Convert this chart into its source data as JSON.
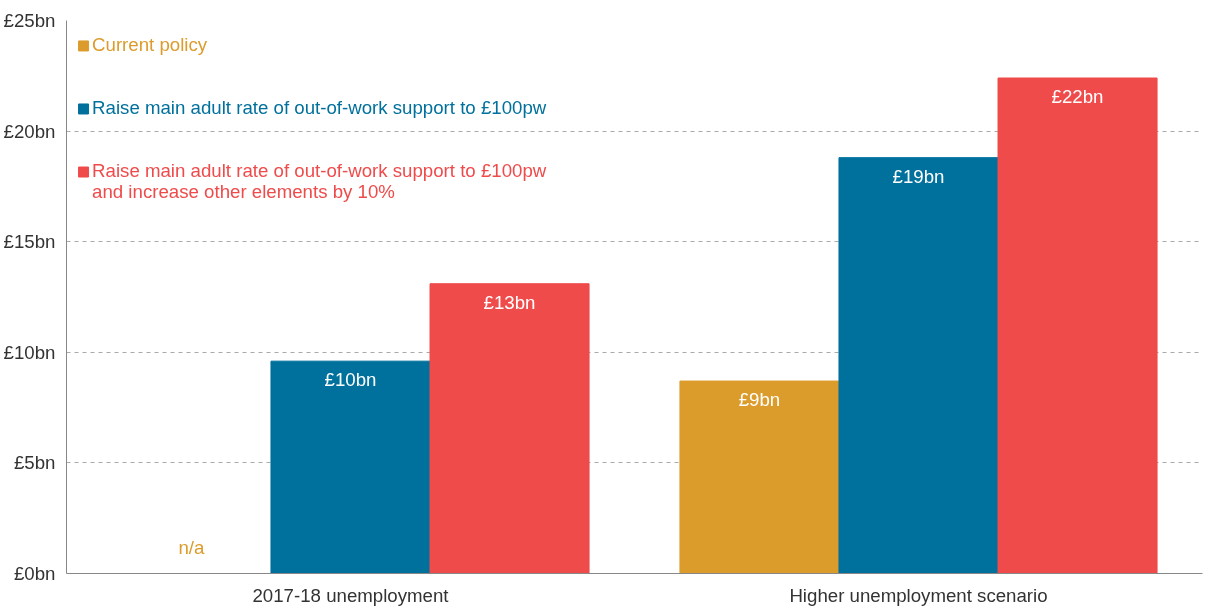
{
  "chart_data": {
    "type": "bar",
    "categories": [
      "2017-18 unemployment",
      "Higher unemployment scenario"
    ],
    "series": [
      {
        "name": "Current policy",
        "color": "#dc9c2c",
        "values": [
          null,
          8.7
        ],
        "value_labels": [
          "n/a",
          "£9bn"
        ]
      },
      {
        "name": "Raise main adult rate of out-of-work support to £100pw",
        "color": "#00709c",
        "values": [
          9.6,
          18.8
        ],
        "value_labels": [
          "£10bn",
          "£19bn"
        ]
      },
      {
        "name": "Raise main adult rate of out-of-work support to £100pw and increase other elements by 10%",
        "color": "#ef4b4b",
        "values": [
          13.1,
          22.4
        ],
        "value_labels": [
          "£13bn",
          "£22bn"
        ]
      }
    ],
    "ylim": [
      0,
      25
    ],
    "yticks": [
      {
        "value": 0,
        "label": "£0bn"
      },
      {
        "value": 5,
        "label": "£5bn"
      },
      {
        "value": 10,
        "label": "£10bn"
      },
      {
        "value": 15,
        "label": "£15bn"
      },
      {
        "value": 20,
        "label": "£20bn"
      },
      {
        "value": 25,
        "label": "£25bn"
      }
    ],
    "grid": "y",
    "legend": "top left"
  }
}
